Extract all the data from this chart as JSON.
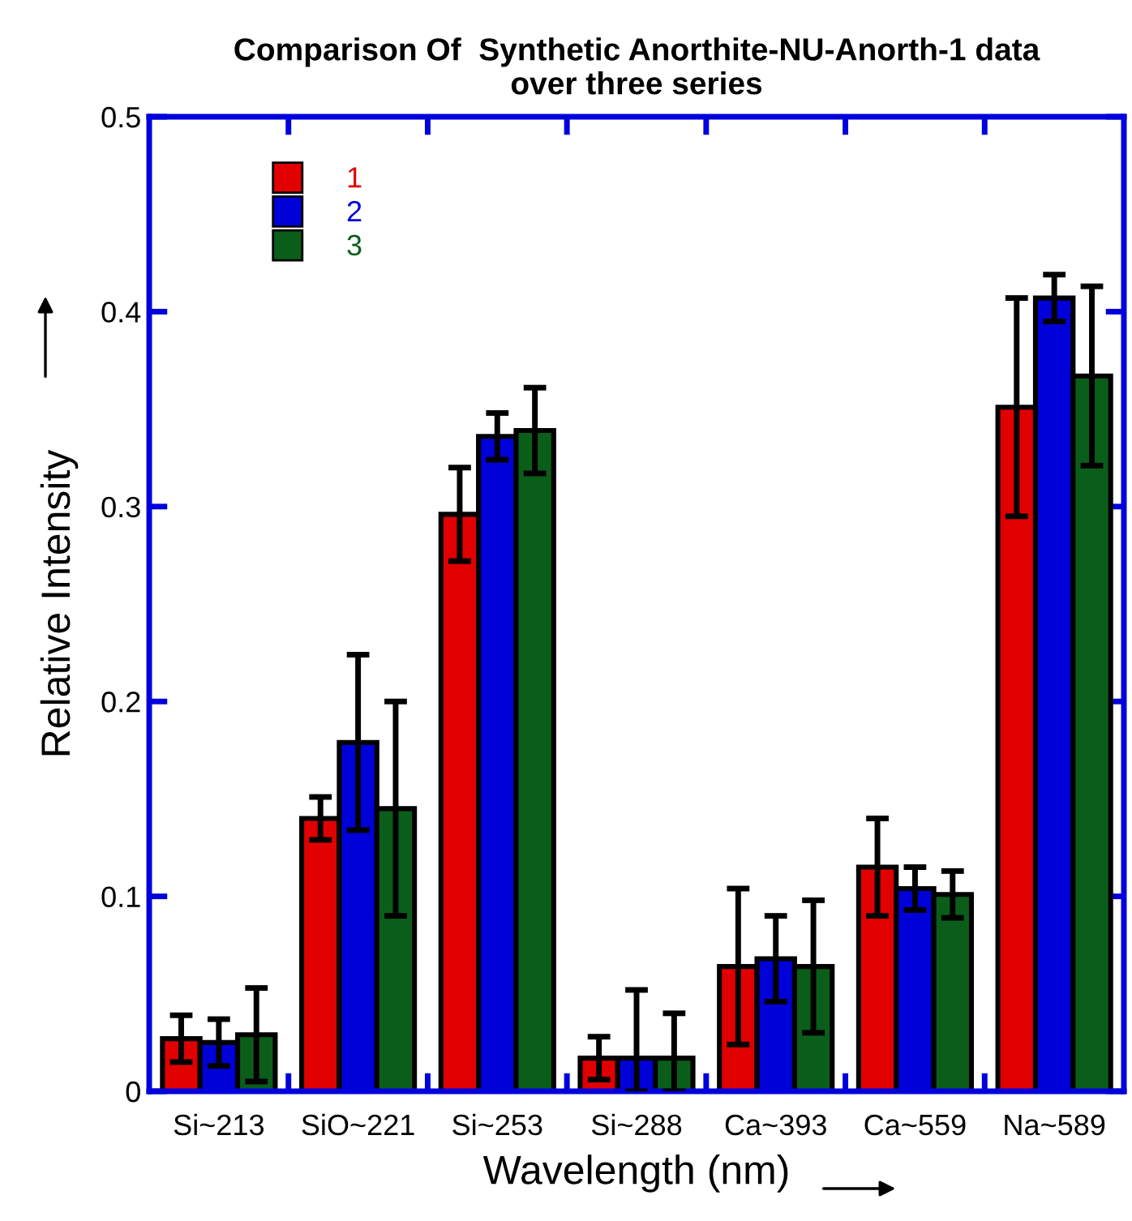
{
  "chart_data": {
    "type": "bar",
    "title": "Comparison Of  Synthetic Anorthite-NU-Anorth-1 data\nover three series",
    "xlabel": "Wavelength (nm)",
    "ylabel": "Relative Intensity",
    "categories": [
      "Si~213",
      "SiO~221",
      "Si~253",
      "Si~288",
      "Ca~393",
      "Ca~559",
      "Na~589"
    ],
    "series": [
      {
        "name": "1",
        "color": "#e00000",
        "values": [
          0.027,
          0.14,
          0.296,
          0.017,
          0.064,
          0.115,
          0.351
        ],
        "errors": [
          0.012,
          0.011,
          0.024,
          0.011,
          0.04,
          0.025,
          0.056
        ]
      },
      {
        "name": "2",
        "color": "#0000d8",
        "values": [
          0.025,
          0.179,
          0.336,
          0.017,
          0.068,
          0.104,
          0.407
        ],
        "errors": [
          0.012,
          0.045,
          0.012,
          [
            0,
            0.052
          ],
          0.022,
          0.011,
          0.012
        ]
      },
      {
        "name": "3",
        "color": "#0a5e1a",
        "values": [
          0.029,
          0.145,
          0.339,
          0.017,
          0.064,
          0.101,
          0.367
        ],
        "errors": [
          0.024,
          0.055,
          0.022,
          [
            0,
            0.04
          ],
          0.034,
          0.012,
          0.046
        ]
      }
    ],
    "ylim": [
      0,
      0.5
    ],
    "yticks": [
      0,
      0.1,
      0.2,
      0.3,
      0.4,
      0.5
    ],
    "grid": false,
    "legend": "top left"
  }
}
